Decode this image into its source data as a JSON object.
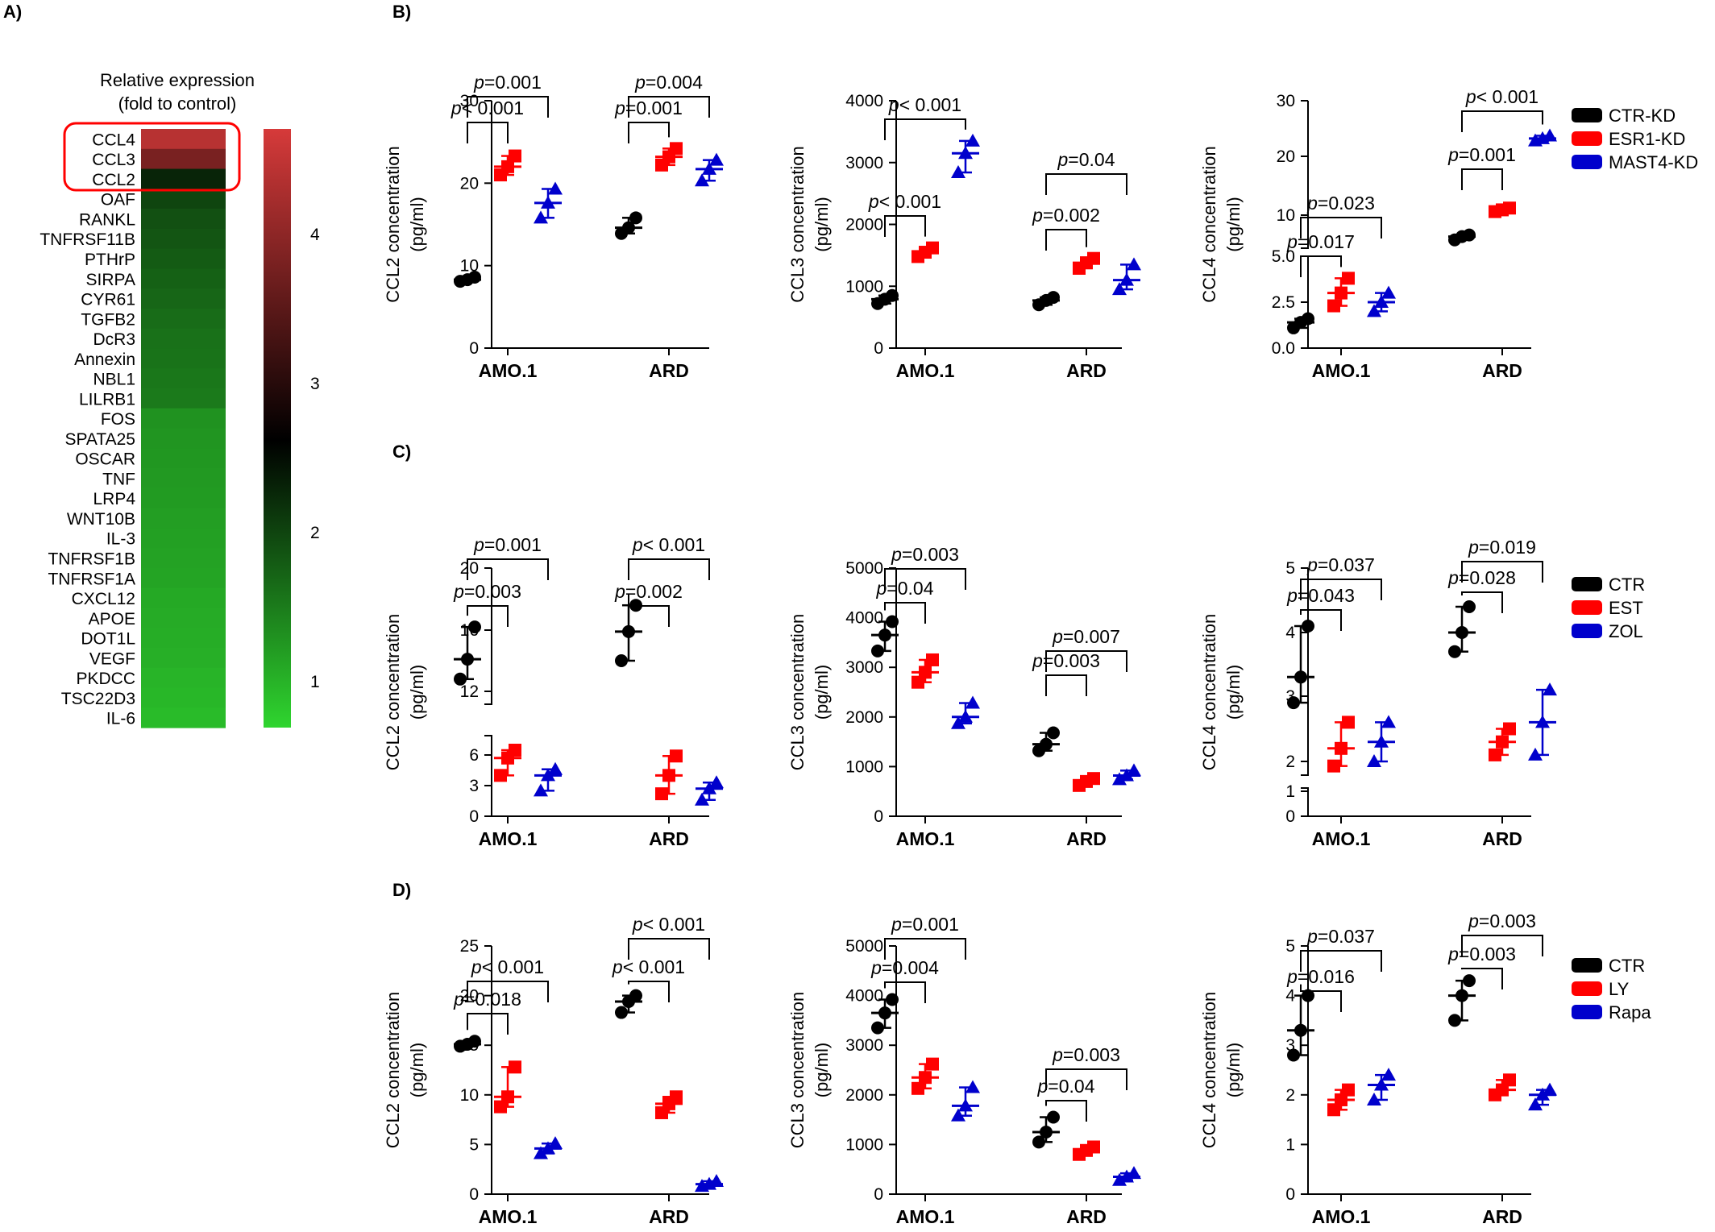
{
  "panel_labels": {
    "A": "A)",
    "B": "B)",
    "C": "C)",
    "D": "D)"
  },
  "colors": {
    "black": "#000000",
    "red": "#ff0000",
    "blue": "#0000cc",
    "heat_high": "#d63a3a",
    "heat_mid": "#000000",
    "heat_low": "#2fd52f",
    "highlight": "#ff0000"
  },
  "heatmap": {
    "title_line1": "Relative expression",
    "title_line2": "(fold to control)",
    "genes": [
      "CCL4",
      "CCL3",
      "CCL2",
      "OAF",
      "RANKL",
      "TNFRSF11B",
      "PTHrP",
      "SIRPA",
      "CYR61",
      "TGFB2",
      "DcR3",
      "Annexin",
      "NBL1",
      "LILRB1",
      "FOS",
      "SPATA25",
      "OSCAR",
      "TNF",
      "LRP4",
      "WNT10B",
      "IL-3",
      "TNFRSF1B",
      "TNFRSF1A",
      "CXCL12",
      "APOE",
      "DOT1L",
      "VEGF",
      "PKDCC",
      "TSC22D3",
      "IL-6"
    ],
    "values": [
      4.5,
      3.9,
      2.4,
      2.1,
      2.0,
      1.95,
      1.9,
      1.85,
      1.8,
      1.75,
      1.7,
      1.68,
      1.65,
      1.62,
      1.4,
      1.38,
      1.36,
      1.34,
      1.32,
      1.3,
      1.28,
      1.26,
      1.24,
      1.2,
      1.18,
      1.16,
      1.14,
      1.1,
      1.07,
      1.03
    ],
    "highlighted": [
      "CCL4",
      "CCL3",
      "CCL2"
    ],
    "scale_ticks": [
      "4",
      "3",
      "2",
      "1"
    ],
    "scale_min": 0.8,
    "scale_max": 4.8
  },
  "legends": [
    {
      "items": [
        {
          "label": "CTR-KD",
          "color": "#000000"
        },
        {
          "label": "ESR1-KD",
          "color": "#ff0000"
        },
        {
          "label": "MAST4-KD",
          "color": "#0000cc"
        }
      ]
    },
    {
      "items": [
        {
          "label": "CTR",
          "color": "#000000"
        },
        {
          "label": "EST",
          "color": "#ff0000"
        },
        {
          "label": "ZOL",
          "color": "#0000cc"
        }
      ]
    },
    {
      "items": [
        {
          "label": "CTR",
          "color": "#000000"
        },
        {
          "label": "LY",
          "color": "#ff0000"
        },
        {
          "label": "Rapa",
          "color": "#0000cc"
        }
      ]
    }
  ],
  "chart_data": [
    {
      "id": "B1",
      "type": "scatter",
      "ylabel": "CCL2 concentration (pg/ml)",
      "categories": [
        "AMO.1",
        "ARD"
      ],
      "yticks": [
        "0",
        "10",
        "20",
        "30"
      ],
      "ylim": [
        0,
        30
      ],
      "series": [
        {
          "name": "CTR-KD",
          "points": [
            [
              8.1,
              8.6,
              8.3
            ],
            [
              13.9,
              15.8,
              14.6
            ]
          ]
        },
        {
          "name": "ESR1-KD",
          "points": [
            [
              21.0,
              23.3,
              22.0
            ],
            [
              22.2,
              24.2,
              23.2
            ]
          ]
        },
        {
          "name": "MAST4-KD",
          "points": [
            [
              15.8,
              19.3,
              17.6
            ],
            [
              20.3,
              22.8,
              21.7
            ]
          ]
        }
      ],
      "comparisons": [
        {
          "group": "AMO.1",
          "vs": "ESR1-KD",
          "label": "p<0.001"
        },
        {
          "group": "AMO.1",
          "vs": "MAST4-KD",
          "label": "p=0.001"
        },
        {
          "group": "ARD",
          "vs": "ESR1-KD",
          "label": "p=0.001"
        },
        {
          "group": "ARD",
          "vs": "MAST4-KD",
          "label": "p=0.004"
        }
      ]
    },
    {
      "id": "B2",
      "type": "scatter",
      "ylabel": "CCL3 concentration (pg/ml)",
      "categories": [
        "AMO.1",
        "ARD"
      ],
      "yticks": [
        "0",
        "1000",
        "2000",
        "3000",
        "4000"
      ],
      "ylim": [
        0,
        4000
      ],
      "series": [
        {
          "name": "CTR-KD",
          "points": [
            [
              720,
              850,
              790
            ],
            [
              700,
              820,
              770
            ]
          ]
        },
        {
          "name": "ESR1-KD",
          "points": [
            [
              1480,
              1620,
              1550
            ],
            [
              1290,
              1450,
              1380
            ]
          ]
        },
        {
          "name": "MAST4-KD",
          "points": [
            [
              2840,
              3350,
              3150
            ],
            [
              950,
              1350,
              1100
            ]
          ]
        }
      ],
      "comparisons": [
        {
          "group": "AMO.1",
          "vs": "ESR1-KD",
          "label": "p<0.001"
        },
        {
          "group": "AMO.1",
          "vs": "MAST4-KD",
          "label": "p<0.001"
        },
        {
          "group": "ARD",
          "vs": "ESR1-KD",
          "label": "p=0.002"
        },
        {
          "group": "ARD",
          "vs": "MAST4-KD",
          "label": "p=0.04"
        }
      ]
    },
    {
      "id": "B3",
      "type": "scatter",
      "ylabel": "CCL4 concentration (pg/ml)",
      "categories": [
        "AMO.1",
        "ARD"
      ],
      "yticks": [
        "0.0",
        "2.5",
        "5.0",
        "10",
        "20",
        "30"
      ],
      "yaxis_break": [
        5,
        6
      ],
      "series": [
        {
          "name": "CTR-KD",
          "points": [
            [
              1.1,
              1.6,
              1.4
            ],
            [
              7.0,
              7.6,
              7.4
            ]
          ]
        },
        {
          "name": "ESR1-KD",
          "points": [
            [
              2.3,
              3.8,
              3.0
            ],
            [
              10.6,
              11.2,
              10.9
            ]
          ]
        },
        {
          "name": "MAST4-KD",
          "points": [
            [
              2.0,
              3.0,
              2.5
            ],
            [
              22.8,
              23.7,
              23.2
            ]
          ]
        }
      ],
      "comparisons": [
        {
          "group": "AMO.1",
          "vs": "ESR1-KD",
          "label": "p=0.017"
        },
        {
          "group": "AMO.1",
          "vs": "MAST4-KD",
          "label": "p=0.023"
        },
        {
          "group": "ARD",
          "vs": "ESR1-KD",
          "label": "p=0.001"
        },
        {
          "group": "ARD",
          "vs": "MAST4-KD",
          "label": "p<0.001"
        }
      ]
    },
    {
      "id": "C1",
      "type": "scatter",
      "ylabel": "CCL2 concentration (pg/ml)",
      "categories": [
        "AMO.1",
        "ARD"
      ],
      "yticks": [
        "0",
        "3",
        "6",
        "12",
        "16",
        "20"
      ],
      "yaxis_break": [
        8,
        10
      ],
      "series": [
        {
          "name": "CTR",
          "points": [
            [
              12.8,
              16.2,
              14.1
            ],
            [
              14.0,
              17.6,
              15.9
            ]
          ]
        },
        {
          "name": "EST",
          "points": [
            [
              4.0,
              6.5,
              5.7
            ],
            [
              2.2,
              5.9,
              4.0
            ]
          ]
        },
        {
          "name": "ZOL",
          "points": [
            [
              2.5,
              4.6,
              4.0
            ],
            [
              1.6,
              3.3,
              2.7
            ]
          ]
        }
      ],
      "comparisons": [
        {
          "group": "AMO.1",
          "vs": "EST",
          "label": "p=0.003"
        },
        {
          "group": "AMO.1",
          "vs": "ZOL",
          "label": "p=0.001"
        },
        {
          "group": "ARD",
          "vs": "EST",
          "label": "p=0.002"
        },
        {
          "group": "ARD",
          "vs": "ZOL",
          "label": "p<0.001"
        }
      ]
    },
    {
      "id": "C2",
      "type": "scatter",
      "ylabel": "CCL3 concentration (pg/ml)",
      "categories": [
        "AMO.1",
        "ARD"
      ],
      "yticks": [
        "0",
        "1000",
        "2000",
        "3000",
        "4000",
        "5000"
      ],
      "ylim": [
        0,
        5000
      ],
      "series": [
        {
          "name": "CTR",
          "points": [
            [
              3330,
              3920,
              3650
            ],
            [
              1320,
              1680,
              1450
            ]
          ]
        },
        {
          "name": "EST",
          "points": [
            [
              2700,
              3150,
              2900
            ],
            [
              620,
              760,
              700
            ]
          ]
        },
        {
          "name": "ZOL",
          "points": [
            [
              1870,
              2280,
              2000
            ],
            [
              740,
              920,
              820
            ]
          ]
        }
      ],
      "comparisons": [
        {
          "group": "AMO.1",
          "vs": "EST",
          "label": "p=0.04"
        },
        {
          "group": "AMO.1",
          "vs": "ZOL",
          "label": "p=0.003"
        },
        {
          "group": "ARD",
          "vs": "EST",
          "label": "p=0.003"
        },
        {
          "group": "ARD",
          "vs": "ZOL",
          "label": "p=0.007"
        }
      ]
    },
    {
      "id": "C3",
      "type": "scatter",
      "ylabel": "CCL4 concentration (pg/ml)",
      "categories": [
        "AMO.1",
        "ARD"
      ],
      "yticks": [
        "0",
        "1",
        "2",
        "3",
        "4",
        "5"
      ],
      "yaxis_break": [
        1.1,
        1.7
      ],
      "series": [
        {
          "name": "CTR",
          "points": [
            [
              2.9,
              4.1,
              3.3
            ],
            [
              3.7,
              4.4,
              4.0
            ]
          ]
        },
        {
          "name": "EST",
          "points": [
            [
              1.9,
              2.6,
              2.2
            ],
            [
              2.1,
              2.5,
              2.3
            ]
          ]
        },
        {
          "name": "ZOL",
          "points": [
            [
              2.0,
              2.6,
              2.3
            ],
            [
              2.1,
              3.1,
              2.6
            ]
          ]
        }
      ],
      "comparisons": [
        {
          "group": "AMO.1",
          "vs": "EST",
          "label": "p=0.043"
        },
        {
          "group": "AMO.1",
          "vs": "ZOL",
          "label": "p=0.037"
        },
        {
          "group": "ARD",
          "vs": "EST",
          "label": "p=0.028"
        },
        {
          "group": "ARD",
          "vs": "ZOL",
          "label": "p=0.019"
        }
      ]
    },
    {
      "id": "D1",
      "type": "scatter",
      "ylabel": "CCL2 concentration (pg/ml)",
      "categories": [
        "AMO.1",
        "ARD"
      ],
      "yticks": [
        "0",
        "5",
        "10",
        "15",
        "20",
        "25"
      ],
      "ylim": [
        0,
        25
      ],
      "series": [
        {
          "name": "CTR",
          "points": [
            [
              14.9,
              15.4,
              15.1
            ],
            [
              18.3,
              20.0,
              19.4
            ]
          ]
        },
        {
          "name": "LY",
          "points": [
            [
              8.8,
              12.8,
              9.8
            ],
            [
              8.2,
              9.8,
              9.1
            ]
          ]
        },
        {
          "name": "Rapa",
          "points": [
            [
              4.1,
              5.1,
              4.6
            ],
            [
              0.8,
              1.3,
              1.0
            ]
          ]
        }
      ],
      "comparisons": [
        {
          "group": "AMO.1",
          "vs": "LY",
          "label": "p=0.018"
        },
        {
          "group": "AMO.1",
          "vs": "Rapa",
          "label": "p<0.001"
        },
        {
          "group": "ARD",
          "vs": "LY",
          "label": "p<0.001"
        },
        {
          "group": "ARD",
          "vs": "Rapa",
          "label": "p<0.001"
        }
      ]
    },
    {
      "id": "D2",
      "type": "scatter",
      "ylabel": "CCL3 concentration (pg/ml)",
      "categories": [
        "AMO.1",
        "ARD"
      ],
      "yticks": [
        "0",
        "1000",
        "2000",
        "3000",
        "4000",
        "5000"
      ],
      "ylim": [
        0,
        5000
      ],
      "series": [
        {
          "name": "CTR",
          "points": [
            [
              3350,
              3920,
              3650
            ],
            [
              1050,
              1550,
              1250
            ]
          ]
        },
        {
          "name": "LY",
          "points": [
            [
              2130,
              2620,
              2350
            ],
            [
              800,
              950,
              880
            ]
          ]
        },
        {
          "name": "Rapa",
          "points": [
            [
              1580,
              2150,
              1780
            ],
            [
              280,
              420,
              350
            ]
          ]
        }
      ],
      "comparisons": [
        {
          "group": "AMO.1",
          "vs": "LY",
          "label": "p=0.004"
        },
        {
          "group": "AMO.1",
          "vs": "Rapa",
          "label": "p=0.001"
        },
        {
          "group": "ARD",
          "vs": "LY",
          "label": "p=0.04"
        },
        {
          "group": "ARD",
          "vs": "Rapa",
          "label": "p=0.003"
        }
      ]
    },
    {
      "id": "D3",
      "type": "scatter",
      "ylabel": "CCL4 concentration (pg/ml)",
      "categories": [
        "AMO.1",
        "ARD"
      ],
      "yticks": [
        "0",
        "1",
        "2",
        "3",
        "4",
        "5"
      ],
      "ylim": [
        0,
        5
      ],
      "series": [
        {
          "name": "CTR",
          "points": [
            [
              2.8,
              4.0,
              3.3
            ],
            [
              3.5,
              4.3,
              4.0
            ]
          ]
        },
        {
          "name": "LY",
          "points": [
            [
              1.7,
              2.1,
              1.9
            ],
            [
              2.0,
              2.3,
              2.1
            ]
          ]
        },
        {
          "name": "Rapa",
          "points": [
            [
              1.9,
              2.4,
              2.2
            ],
            [
              1.8,
              2.1,
              2.0
            ]
          ]
        }
      ],
      "comparisons": [
        {
          "group": "AMO.1",
          "vs": "LY",
          "label": "p=0.016"
        },
        {
          "group": "AMO.1",
          "vs": "Rapa",
          "label": "p=0.037"
        },
        {
          "group": "ARD",
          "vs": "LY",
          "label": "p=0.003"
        },
        {
          "group": "ARD",
          "vs": "Rapa",
          "label": "p=0.003"
        }
      ]
    }
  ]
}
